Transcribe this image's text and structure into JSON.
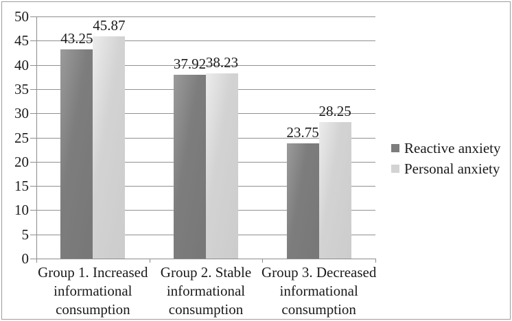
{
  "chart_data": {
    "type": "bar",
    "title": "",
    "categories": [
      "Group 1. Increased informational consumption",
      "Group 2. Stable informational consumption",
      "Group 3. Decreased informational consumption"
    ],
    "category_lines": [
      [
        "Group 1. Increased",
        "informational",
        "consumption"
      ],
      [
        "Group 2. Stable",
        "informational",
        "consumption"
      ],
      [
        "Group 3. Decreased",
        "informational",
        "consumption"
      ]
    ],
    "series": [
      {
        "name": "Reactive anxiety",
        "values": [
          43.25,
          37.92,
          23.75
        ],
        "value_labels": [
          "43.25",
          "37.92",
          "23.75"
        ],
        "color": "#7d7d7d",
        "fill_light": "#9b9b9b",
        "fill_dark": "#777777"
      },
      {
        "name": "Personal anxiety",
        "values": [
          45.87,
          38.23,
          28.25
        ],
        "value_labels": [
          "45.87",
          "38.23",
          "28.25"
        ],
        "color": "#d3d3d3",
        "fill_light": "#ececec",
        "fill_dark": "#cccccc"
      }
    ],
    "y_axis": {
      "min": 0,
      "max": 50,
      "step": 5,
      "tick_labels": [
        "0",
        "5",
        "10",
        "15",
        "20",
        "25",
        "30",
        "35",
        "40",
        "45",
        "50"
      ]
    },
    "grid": true,
    "legend_position": "right",
    "colors": {
      "gridline": "#8f8f8f",
      "axis": "#8c8c8c",
      "text": "#1a1a1a",
      "border": "#9c9c9c",
      "background": "#ffffff"
    }
  }
}
